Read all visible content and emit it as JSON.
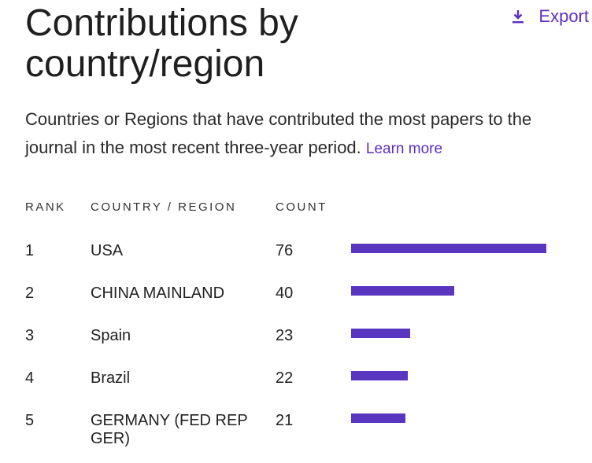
{
  "title": "Contributions by country/region",
  "export_label": "Export",
  "description": "Countries or Regions that have contributed the most papers to the journal in the most recent three-year period.",
  "learn_more": "Learn more",
  "columns": {
    "rank": "RANK",
    "country": "COUNTRY / REGION",
    "count": "COUNT"
  },
  "accent_color": "#5a35c0",
  "rows": [
    {
      "rank": "1",
      "country": "USA",
      "count": "76"
    },
    {
      "rank": "2",
      "country": "CHINA MAINLAND",
      "count": "40"
    },
    {
      "rank": "3",
      "country": "Spain",
      "count": "23"
    },
    {
      "rank": "4",
      "country": "Brazil",
      "count": "22"
    },
    {
      "rank": "5",
      "country": "GERMANY (FED REP GER)",
      "count": "21"
    }
  ],
  "chart_data": {
    "type": "bar",
    "categories": [
      "USA",
      "CHINA MAINLAND",
      "Spain",
      "Brazil",
      "GERMANY (FED REP GER)"
    ],
    "values": [
      76,
      40,
      23,
      22,
      21
    ]
  }
}
